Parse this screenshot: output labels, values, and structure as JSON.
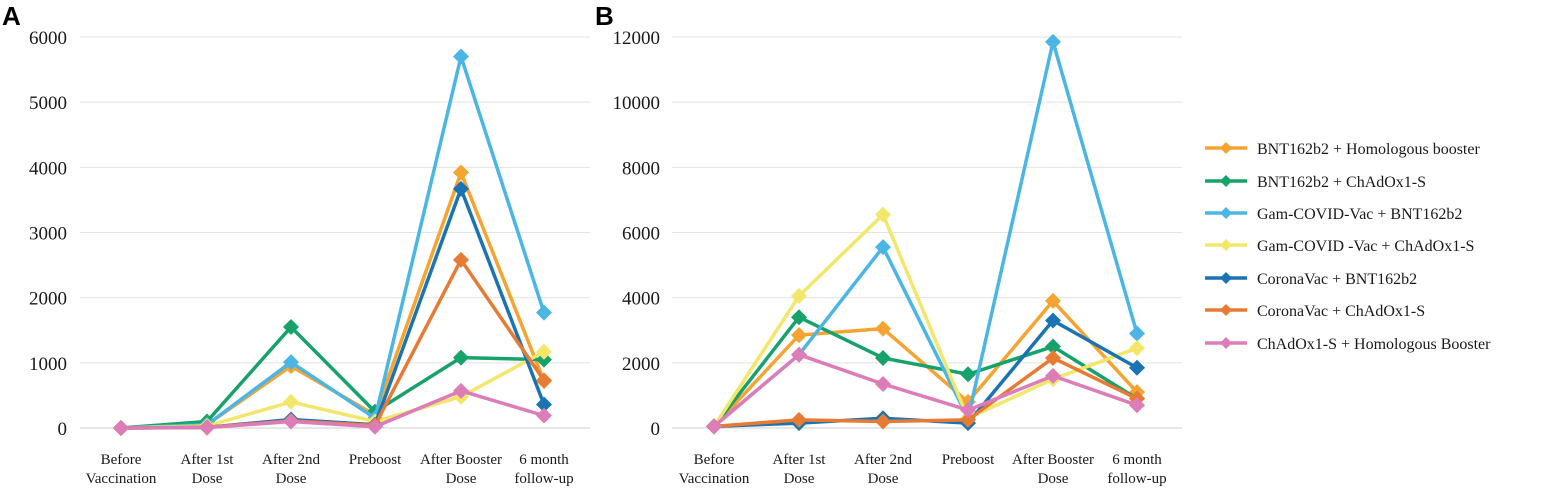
{
  "chart_data": [
    {
      "type": "line",
      "panel": "A",
      "categories": [
        "Before|Vaccination",
        "After 1st|Dose",
        "After 2nd|Dose",
        "Preboost",
        "After Booster|Dose",
        "6 month|follow-up"
      ],
      "ylim": [
        0,
        6000
      ],
      "yticks": [
        0,
        1000,
        2000,
        3000,
        4000,
        5000,
        6000
      ],
      "grid": true,
      "series": [
        {
          "name": "BNT162b2 + Homologous booster",
          "color": "#F5A431",
          "values": [
            0,
            50,
            950,
            200,
            3920,
            720
          ]
        },
        {
          "name": "BNT162b2 + ChAdOx1-S",
          "color": "#16A26A",
          "values": [
            0,
            100,
            1550,
            250,
            1080,
            1050
          ]
        },
        {
          "name": "Gam-COVID-Vac + BNT162b2",
          "color": "#4BB6E6",
          "values": [
            0,
            50,
            1010,
            150,
            5700,
            1770
          ]
        },
        {
          "name": "Gam-COVID -Vac + ChAdOx1-S",
          "color": "#F2E76A",
          "values": [
            0,
            30,
            400,
            100,
            480,
            1170
          ]
        },
        {
          "name": "CoronaVac + BNT162b2",
          "color": "#1A73B3",
          "values": [
            0,
            10,
            130,
            50,
            3670,
            360
          ]
        },
        {
          "name": "CoronaVac + ChAdOx1-S",
          "color": "#E77B33",
          "values": [
            0,
            10,
            110,
            40,
            2580,
            730
          ]
        },
        {
          "name": "ChAdOx1-S + Homologous Booster",
          "color": "#DD7DB8",
          "values": [
            0,
            5,
            100,
            20,
            570,
            190
          ]
        }
      ]
    },
    {
      "type": "line",
      "panel": "B",
      "categories": [
        "Before|Vaccination",
        "After 1st|Dose",
        "After 2nd|Dose",
        "Preboost",
        "After Booster|Dose",
        "6 month|follow-up"
      ],
      "ylim": [
        0,
        12000
      ],
      "yticks": [
        0,
        2000,
        4000,
        6000,
        8000,
        10000,
        12000
      ],
      "grid": true,
      "series": [
        {
          "name": "BNT162b2 + Homologous booster",
          "color": "#F5A431",
          "values": [
            50,
            2850,
            3050,
            800,
            3900,
            1100
          ]
        },
        {
          "name": "BNT162b2 + ChAdOx1-S",
          "color": "#16A26A",
          "values": [
            50,
            3400,
            2150,
            1650,
            2500,
            900
          ]
        },
        {
          "name": "Gam-COVID-Vac + BNT162b2",
          "color": "#4BB6E6",
          "values": [
            50,
            2250,
            5550,
            300,
            11850,
            2900
          ]
        },
        {
          "name": "Gam-COVID -Vac + ChAdOx1-S",
          "color": "#F2E76A",
          "values": [
            50,
            4050,
            6550,
            300,
            1500,
            2450
          ]
        },
        {
          "name": "CoronaVac + BNT162b2",
          "color": "#1A73B3",
          "values": [
            50,
            150,
            300,
            150,
            3300,
            1850
          ]
        },
        {
          "name": "CoronaVac + ChAdOx1-S",
          "color": "#E77B33",
          "values": [
            50,
            250,
            200,
            250,
            2150,
            900
          ]
        },
        {
          "name": "ChAdOx1-S + Homologous Booster",
          "color": "#DD7DB8",
          "values": [
            50,
            2250,
            1350,
            550,
            1600,
            700
          ]
        }
      ]
    }
  ]
}
